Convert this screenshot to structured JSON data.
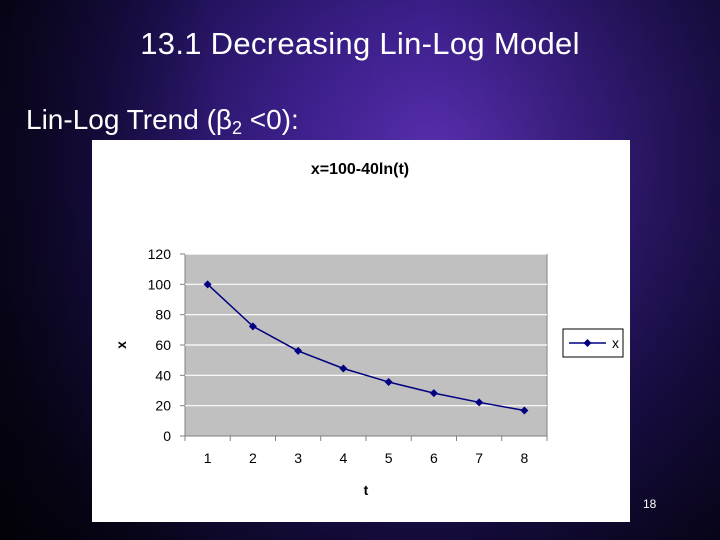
{
  "slide": {
    "title": "13.1 Decreasing Lin-Log Model",
    "subtitle_prefix": "Lin-Log Trend (β",
    "subtitle_sub": "2",
    "subtitle_suffix": " <0):",
    "page_number": "18"
  },
  "colors": {
    "series": "#000080",
    "plot_area": "#c0c0c0",
    "gridline": "#ffffff"
  },
  "chart_data": {
    "type": "line",
    "title": "x=100-40ln(t)",
    "xlabel": "t",
    "ylabel": "x",
    "x": [
      1,
      2,
      3,
      4,
      5,
      6,
      7,
      8
    ],
    "categories": [
      "1",
      "2",
      "3",
      "4",
      "5",
      "6",
      "7",
      "8"
    ],
    "series": [
      {
        "name": "x",
        "marker": "diamond",
        "values": [
          100,
          72.3,
          56.1,
          44.5,
          35.6,
          28.3,
          22.2,
          16.8
        ]
      }
    ],
    "yticks": [
      "0",
      "20",
      "40",
      "60",
      "80",
      "100",
      "120"
    ],
    "ylim": [
      0,
      120
    ],
    "grid": true,
    "legend": "right"
  }
}
